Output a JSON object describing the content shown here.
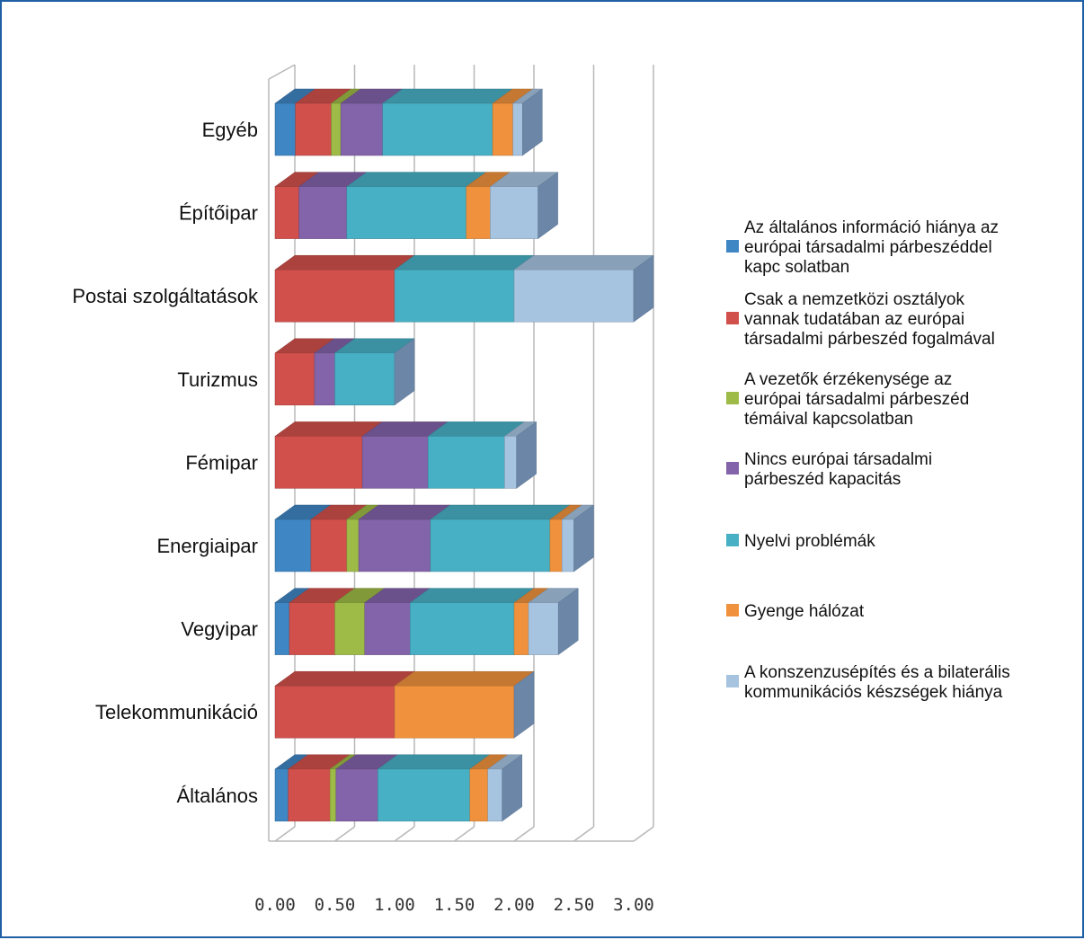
{
  "chart_data": {
    "type": "bar",
    "orientation": "horizontal",
    "stacked": true,
    "three_d": true,
    "categories": [
      "Egyéb",
      "Építőipar",
      "Postai szolgáltatások",
      "Turizmus",
      "Fémipar",
      "Energiaipar",
      "Vegyipar",
      "Telekommunikáció",
      "Általános"
    ],
    "series": [
      {
        "name": "Az általános információ hiánya az európai társadalmi párbeszéddel kapc solatban",
        "name_lines": [
          "Az általános információ hiánya az",
          "európai társadalmi párbeszéddel",
          "kapc solatban"
        ],
        "color": "#3f86c4",
        "values": [
          0.17,
          0,
          0,
          0,
          0,
          0.3,
          0.12,
          0,
          0.11
        ]
      },
      {
        "name": "Csak a nemzetközi osztályok vannak tudatában az európai társadalmi párbeszéd fogalmával",
        "name_lines": [
          "Csak a nemzetközi osztályok",
          "vannak tudatában az európai",
          "társadalmi párbeszéd fogalmával"
        ],
        "color": "#d1504c",
        "values": [
          0.3,
          0.2,
          1.0,
          0.33,
          0.73,
          0.3,
          0.38,
          1.0,
          0.35
        ]
      },
      {
        "name": "A vezetők érzékenysége az európai társadalmi párbeszéd témáival kapcsolatban",
        "name_lines": [
          "A vezetők érzékenysége az",
          "európai társadalmi párbeszéd",
          "témáival kapcsolatban"
        ],
        "color": "#9dbb46",
        "values": [
          0.08,
          0,
          0,
          0,
          0,
          0.1,
          0.25,
          0,
          0.05
        ]
      },
      {
        "name": "Nincs európai társadalmi párbeszéd kapacitás",
        "name_lines": [
          "Nincs európai társadalmi",
          "párbeszéd kapacitás"
        ],
        "color": "#8363a9",
        "values": [
          0.35,
          0.4,
          0,
          0.17,
          0.55,
          0.6,
          0.38,
          0,
          0.35
        ]
      },
      {
        "name": "Nyelvi problémák",
        "name_lines": [
          "Nyelvi problémák"
        ],
        "color": "#48b0c4",
        "values": [
          0.92,
          1.0,
          1.0,
          0.5,
          0.64,
          1.0,
          0.87,
          0,
          0.77
        ]
      },
      {
        "name": "Gyenge hálózat",
        "name_lines": [
          "Gyenge hálózat"
        ],
        "color": "#f0923d",
        "values": [
          0.17,
          0.2,
          0,
          0,
          0,
          0.1,
          0.12,
          1.0,
          0.15
        ]
      },
      {
        "name": "A konszenzusépítés és a bilaterális kommunikációs készségek hiánya",
        "name_lines": [
          "A konszenzusépítés és a bilaterális",
          "kommunikációs készségek hiánya"
        ],
        "color": "#a6c3e0",
        "values": [
          0.08,
          0.4,
          1.0,
          0,
          0.1,
          0.1,
          0.25,
          0,
          0.12
        ]
      }
    ],
    "x_ticks": [
      "0.00",
      "0.50",
      "1.00",
      "1.50",
      "2.00",
      "2.50",
      "3.00"
    ],
    "xlim": [
      0,
      3.0
    ],
    "grid": true,
    "legend_position": "right"
  }
}
